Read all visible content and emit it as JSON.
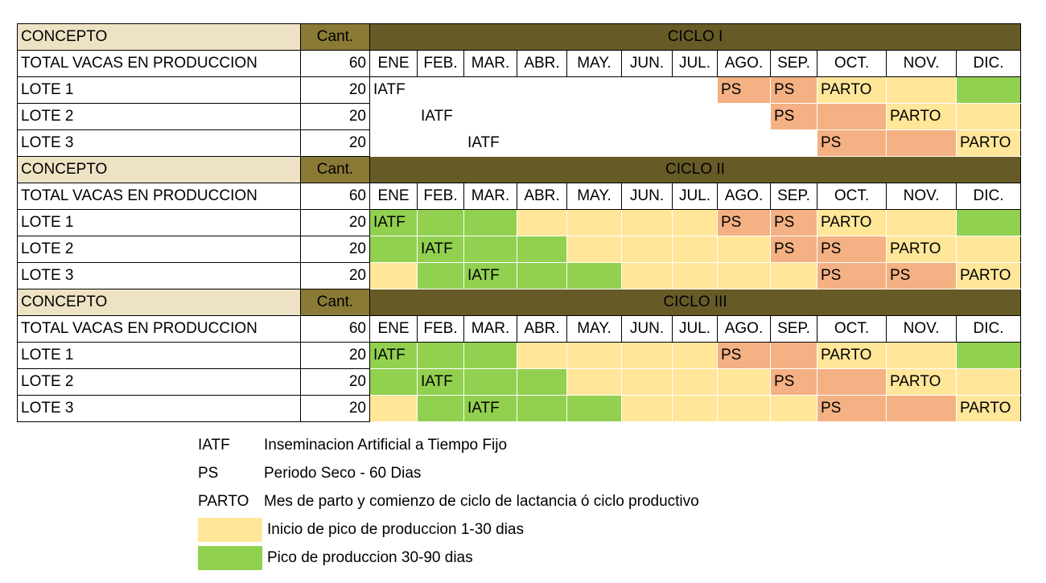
{
  "colors": {
    "header_concept": "#ede3c4",
    "header_cant": "#8a7a36",
    "header_cycle": "#665b27",
    "ps": "#f4b183",
    "yellow": "#ffe699",
    "green": "#92d050"
  },
  "months": [
    "ENE",
    "FEB.",
    "MAR.",
    "ABR.",
    "MAY.",
    "JUN.",
    "JUL.",
    "AGO.",
    "SEP.",
    "OCT.",
    "NOV.",
    "DIC."
  ],
  "cycles": [
    {
      "concept_label": "CONCEPTO",
      "cant_label": "Cant.",
      "cycle_label": "CICLO I",
      "total_label": "TOTAL VACAS EN PRODUCCION",
      "total_value": "60",
      "lots": [
        {
          "name": "LOTE 1",
          "count": "20",
          "cells": [
            {
              "t": "IATF",
              "c": ""
            },
            {
              "t": "",
              "c": ""
            },
            {
              "t": "",
              "c": ""
            },
            {
              "t": "",
              "c": ""
            },
            {
              "t": "",
              "c": ""
            },
            {
              "t": "",
              "c": ""
            },
            {
              "t": "",
              "c": ""
            },
            {
              "t": "PS",
              "c": "ps"
            },
            {
              "t": "PS",
              "c": "ps"
            },
            {
              "t": "PARTO",
              "c": "yel"
            },
            {
              "t": "",
              "c": "yel"
            },
            {
              "t": "",
              "c": "grn"
            }
          ]
        },
        {
          "name": "LOTE 2",
          "count": "20",
          "cells": [
            {
              "t": "",
              "c": ""
            },
            {
              "t": "IATF",
              "c": ""
            },
            {
              "t": "",
              "c": ""
            },
            {
              "t": "",
              "c": ""
            },
            {
              "t": "",
              "c": ""
            },
            {
              "t": "",
              "c": ""
            },
            {
              "t": "",
              "c": ""
            },
            {
              "t": "",
              "c": ""
            },
            {
              "t": "PS",
              "c": "ps"
            },
            {
              "t": "",
              "c": "ps"
            },
            {
              "t": "PARTO",
              "c": "yel"
            },
            {
              "t": "",
              "c": "yel"
            }
          ]
        },
        {
          "name": "LOTE 3",
          "count": "20",
          "cells": [
            {
              "t": "",
              "c": ""
            },
            {
              "t": "",
              "c": ""
            },
            {
              "t": "IATF",
              "c": ""
            },
            {
              "t": "",
              "c": ""
            },
            {
              "t": "",
              "c": ""
            },
            {
              "t": "",
              "c": ""
            },
            {
              "t": "",
              "c": ""
            },
            {
              "t": "",
              "c": ""
            },
            {
              "t": "",
              "c": ""
            },
            {
              "t": "PS",
              "c": "ps"
            },
            {
              "t": "",
              "c": "ps"
            },
            {
              "t": "PARTO",
              "c": "yel"
            }
          ]
        }
      ]
    },
    {
      "concept_label": "CONCEPTO",
      "cant_label": "Cant.",
      "cycle_label": "CICLO II",
      "total_label": "TOTAL VACAS EN PRODUCCION",
      "total_value": "60",
      "lots": [
        {
          "name": "LOTE 1",
          "count": "20",
          "cells": [
            {
              "t": "IATF",
              "c": "grn"
            },
            {
              "t": "",
              "c": "grn"
            },
            {
              "t": "",
              "c": "grn"
            },
            {
              "t": "",
              "c": "yel"
            },
            {
              "t": "",
              "c": "yel"
            },
            {
              "t": "",
              "c": "yel"
            },
            {
              "t": "",
              "c": "yel"
            },
            {
              "t": "PS",
              "c": "ps"
            },
            {
              "t": "PS",
              "c": "ps"
            },
            {
              "t": "PARTO",
              "c": "yel"
            },
            {
              "t": "",
              "c": "yel"
            },
            {
              "t": "",
              "c": "grn"
            }
          ]
        },
        {
          "name": "LOTE 2",
          "count": "20",
          "cells": [
            {
              "t": "",
              "c": "grn"
            },
            {
              "t": "IATF",
              "c": "grn"
            },
            {
              "t": "",
              "c": "grn"
            },
            {
              "t": "",
              "c": "grn"
            },
            {
              "t": "",
              "c": "yel"
            },
            {
              "t": "",
              "c": "yel"
            },
            {
              "t": "",
              "c": "yel"
            },
            {
              "t": "",
              "c": "yel"
            },
            {
              "t": "PS",
              "c": "ps"
            },
            {
              "t": "PS",
              "c": "ps"
            },
            {
              "t": "PARTO",
              "c": "yel"
            },
            {
              "t": "",
              "c": "yel"
            }
          ]
        },
        {
          "name": "LOTE 3",
          "count": "20",
          "cells": [
            {
              "t": "",
              "c": "yel"
            },
            {
              "t": "",
              "c": "grn"
            },
            {
              "t": "IATF",
              "c": "grn"
            },
            {
              "t": "",
              "c": "grn"
            },
            {
              "t": "",
              "c": "grn"
            },
            {
              "t": "",
              "c": "yel"
            },
            {
              "t": "",
              "c": "yel"
            },
            {
              "t": "",
              "c": "yel"
            },
            {
              "t": "",
              "c": "yel"
            },
            {
              "t": "PS",
              "c": "ps"
            },
            {
              "t": "PS",
              "c": "ps"
            },
            {
              "t": "PARTO",
              "c": "yel"
            }
          ]
        }
      ]
    },
    {
      "concept_label": "CONCEPTO",
      "cant_label": "Cant.",
      "cycle_label": "CICLO III",
      "total_label": "TOTAL VACAS EN PRODUCCION",
      "total_value": "60",
      "lots": [
        {
          "name": "LOTE 1",
          "count": "20",
          "cells": [
            {
              "t": "IATF",
              "c": "grn"
            },
            {
              "t": "",
              "c": "grn"
            },
            {
              "t": "",
              "c": "grn"
            },
            {
              "t": "",
              "c": "yel"
            },
            {
              "t": "",
              "c": "yel"
            },
            {
              "t": "",
              "c": "yel"
            },
            {
              "t": "",
              "c": "yel"
            },
            {
              "t": "PS",
              "c": "ps"
            },
            {
              "t": "",
              "c": "ps"
            },
            {
              "t": "PARTO",
              "c": "yel"
            },
            {
              "t": "",
              "c": "yel"
            },
            {
              "t": "",
              "c": "grn"
            }
          ]
        },
        {
          "name": "LOTE 2",
          "count": "20",
          "cells": [
            {
              "t": "",
              "c": "grn"
            },
            {
              "t": "IATF",
              "c": "grn"
            },
            {
              "t": "",
              "c": "grn"
            },
            {
              "t": "",
              "c": "grn"
            },
            {
              "t": "",
              "c": "yel"
            },
            {
              "t": "",
              "c": "yel"
            },
            {
              "t": "",
              "c": "yel"
            },
            {
              "t": "",
              "c": "yel"
            },
            {
              "t": "PS",
              "c": "ps"
            },
            {
              "t": "",
              "c": "ps"
            },
            {
              "t": "PARTO",
              "c": "yel"
            },
            {
              "t": "",
              "c": "yel"
            }
          ]
        },
        {
          "name": "LOTE 3",
          "count": "20",
          "cells": [
            {
              "t": "",
              "c": "yel"
            },
            {
              "t": "",
              "c": "grn"
            },
            {
              "t": "IATF",
              "c": "grn"
            },
            {
              "t": "",
              "c": "grn"
            },
            {
              "t": "",
              "c": "grn"
            },
            {
              "t": "",
              "c": "yel"
            },
            {
              "t": "",
              "c": "yel"
            },
            {
              "t": "",
              "c": "yel"
            },
            {
              "t": "",
              "c": "yel"
            },
            {
              "t": "PS",
              "c": "ps"
            },
            {
              "t": "",
              "c": "ps"
            },
            {
              "t": "PARTO",
              "c": "yel"
            }
          ]
        }
      ]
    }
  ],
  "legend": [
    {
      "key": "IATF",
      "swatch": "",
      "text": "Inseminacion Artificial a Tiempo Fijo"
    },
    {
      "key": "PS",
      "swatch": "",
      "text": "Periodo Seco - 60 Dias"
    },
    {
      "key": "PARTO",
      "swatch": "",
      "text": "Mes de parto y comienzo de ciclo de lactancia ó ciclo productivo"
    },
    {
      "key": "",
      "swatch": "yel",
      "text": "Inicio de pico de produccion 1-30 dias"
    },
    {
      "key": "",
      "swatch": "grn",
      "text": "Pico de produccion 30-90 dias"
    }
  ]
}
